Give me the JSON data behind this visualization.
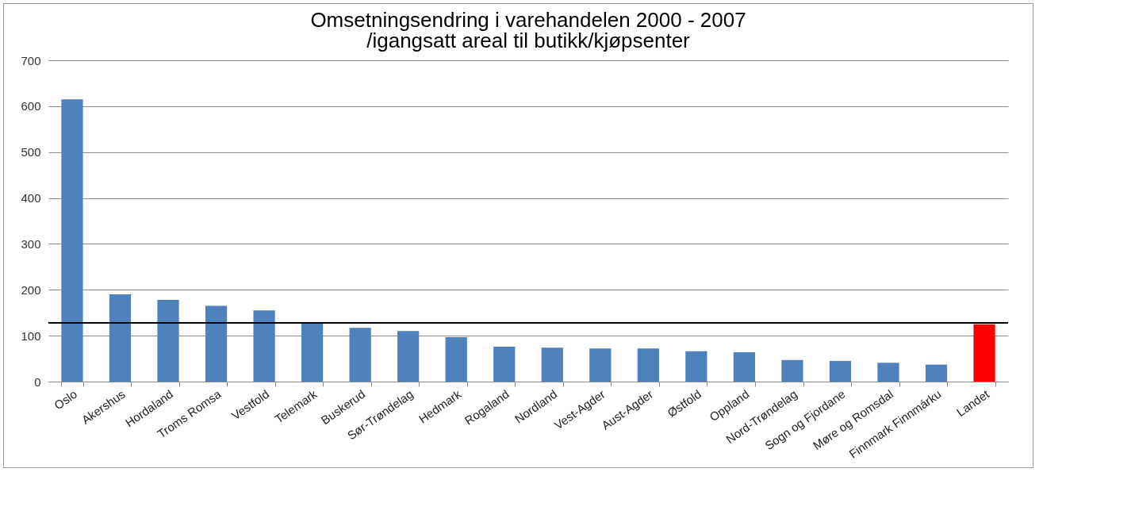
{
  "chart_data": {
    "type": "bar",
    "title": "Omsetningsendring i varehandelen 2000 - 2007",
    "subtitle": "/igangsatt areal til butikk/kjøpsenter",
    "categories": [
      "Oslo",
      "Akershus",
      "Hordaland",
      "Troms Romsa",
      "Vestfold",
      "Telemark",
      "Buskerud",
      "Sør-Trøndelag",
      "Hedmark",
      "Rogaland",
      "Nordland",
      "Vest-Agder",
      "Aust-Agder",
      "Østfold",
      "Oppland",
      "Nord-Trøndelag",
      "Sogn og Fjordane",
      "Møre og Romsdal",
      "Finnmark Finnmárku",
      "Landet"
    ],
    "values": [
      615,
      190,
      178,
      165,
      155,
      128,
      117,
      110,
      97,
      76,
      74,
      72,
      72,
      66,
      64,
      47,
      45,
      41,
      37,
      125
    ],
    "colors": [
      "#4f81bd",
      "#4f81bd",
      "#4f81bd",
      "#4f81bd",
      "#4f81bd",
      "#4f81bd",
      "#4f81bd",
      "#4f81bd",
      "#4f81bd",
      "#4f81bd",
      "#4f81bd",
      "#4f81bd",
      "#4f81bd",
      "#4f81bd",
      "#4f81bd",
      "#4f81bd",
      "#4f81bd",
      "#4f81bd",
      "#4f81bd",
      "#ff0000"
    ],
    "ylim": [
      0,
      700
    ],
    "yticks": [
      0,
      100,
      200,
      300,
      400,
      500,
      600,
      700
    ],
    "grid": "y",
    "ref_lines": [
      {
        "axis": "y",
        "value": 128,
        "label": null,
        "color": "#000000"
      }
    ]
  }
}
